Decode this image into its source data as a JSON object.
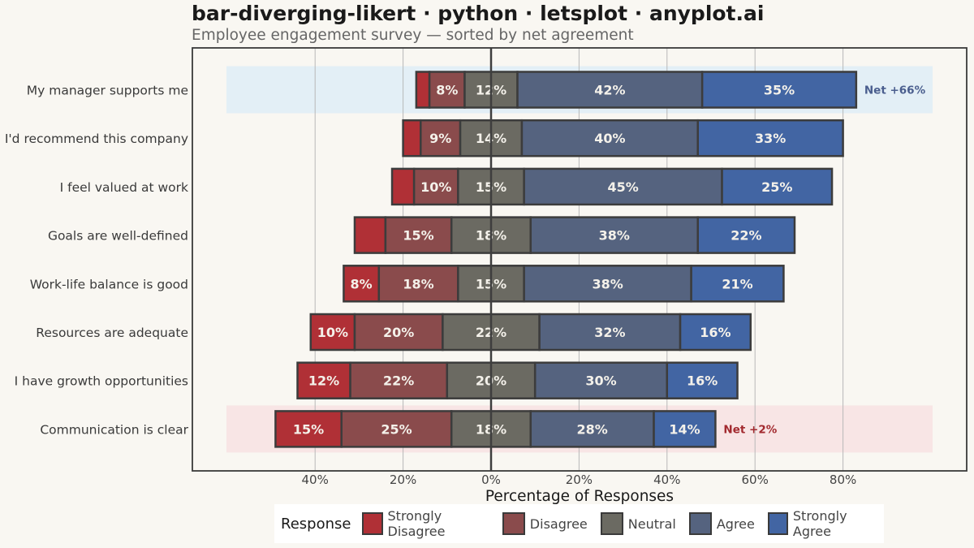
{
  "title": "bar-diverging-likert · python · letsplot · anyplot.ai",
  "subtitle": "Employee engagement survey — sorted by net agreement",
  "colors": {
    "strongly_disagree": "#B03036",
    "disagree": "#8A4B4C",
    "neutral": "#6B6A62",
    "agree": "#55637F",
    "strongly_agree": "#4265A3",
    "highlight_top": "#E3EFF6",
    "highlight_bottom": "#F8E5E5",
    "net_positive": "#4A5E8E",
    "net_negative": "#A22A2F"
  },
  "legend": {
    "title": "Response",
    "items": [
      {
        "label": "Strongly Disagree",
        "color": "#B03036"
      },
      {
        "label": "Disagree",
        "color": "#8A4B4C"
      },
      {
        "label": "Neutral",
        "color": "#6B6A62"
      },
      {
        "label": "Agree",
        "color": "#55637F"
      },
      {
        "label": "Strongly Agree",
        "color": "#4265A3"
      }
    ]
  },
  "chart_data": {
    "type": "bar",
    "orientation": "horizontal-diverging",
    "xlabel": "Percentage of Responses",
    "xlim": [
      -68,
      100
    ],
    "xticks": [
      -40,
      -20,
      0,
      20,
      40,
      60,
      80
    ],
    "xtick_labels": [
      "40%",
      "20%",
      "0%",
      "20%",
      "40%",
      "60%",
      "80%"
    ],
    "categories": [
      "My manager supports me",
      "I'd recommend this company",
      "I feel valued at work",
      "Goals are well-defined",
      "Work-life balance is good",
      "Resources are adequate",
      "I have growth opportunities",
      "Communication is clear"
    ],
    "series": [
      {
        "name": "Strongly Disagree",
        "values": [
          3,
          4,
          5,
          7,
          8,
          10,
          12,
          15
        ],
        "labels": [
          "",
          "",
          "",
          "",
          "8%",
          "10%",
          "12%",
          "15%"
        ]
      },
      {
        "name": "Disagree",
        "values": [
          8,
          9,
          10,
          15,
          18,
          20,
          22,
          25
        ],
        "labels": [
          "8%",
          "9%",
          "10%",
          "15%",
          "18%",
          "20%",
          "22%",
          "25%"
        ]
      },
      {
        "name": "Neutral",
        "values": [
          12,
          14,
          15,
          18,
          15,
          22,
          20,
          18
        ],
        "labels": [
          "12%",
          "14%",
          "15%",
          "18%",
          "15%",
          "22%",
          "20%",
          "18%"
        ]
      },
      {
        "name": "Agree",
        "values": [
          42,
          40,
          45,
          38,
          38,
          32,
          30,
          28
        ],
        "labels": [
          "42%",
          "40%",
          "45%",
          "38%",
          "38%",
          "32%",
          "30%",
          "28%"
        ]
      },
      {
        "name": "Strongly Agree",
        "values": [
          35,
          33,
          25,
          22,
          21,
          16,
          16,
          14
        ],
        "labels": [
          "35%",
          "33%",
          "25%",
          "22%",
          "21%",
          "16%",
          "16%",
          "14%"
        ]
      }
    ],
    "annotations": [
      {
        "category": "My manager supports me",
        "text": "Net +66%",
        "tone": "positive"
      },
      {
        "category": "Communication is clear",
        "text": "Net +2%",
        "tone": "negative"
      }
    ],
    "grid": "vertical",
    "legend_position": "bottom"
  }
}
